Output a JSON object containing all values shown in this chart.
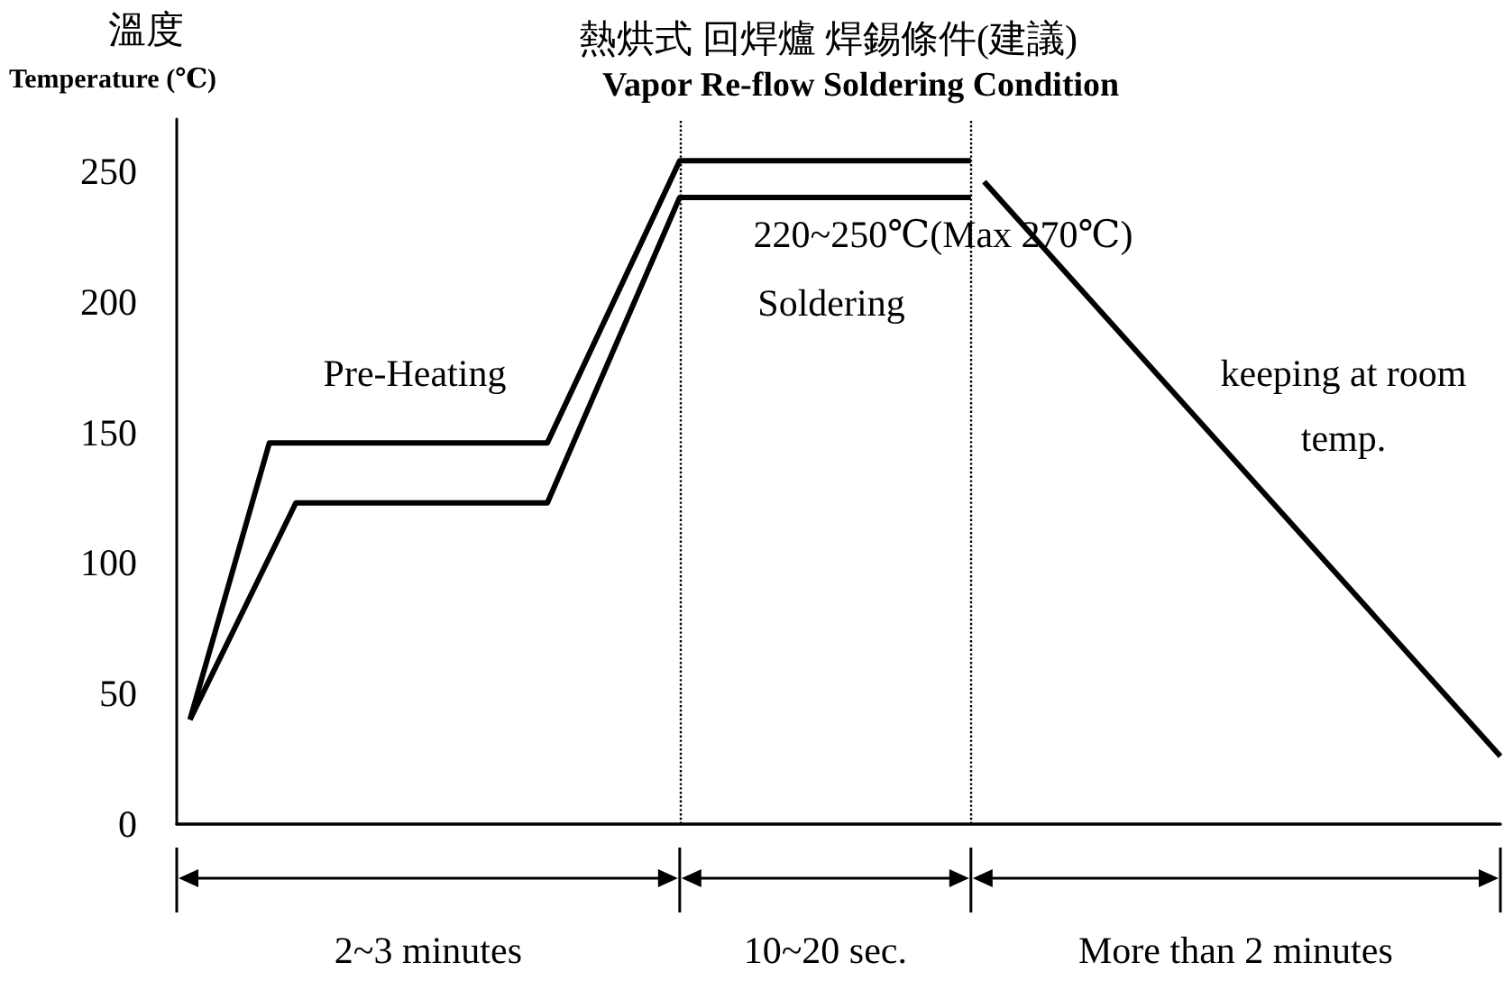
{
  "chart_data": {
    "type": "line",
    "title": "熱烘式 回焊爐 焊錫條件(建議)",
    "subtitle": "Vapor Re-flow Soldering Condition",
    "ylabel": "溫度\nTemperature (℃)",
    "categories": [
      null,
      null,
      null,
      null,
      null,
      null,
      null,
      null,
      null,
      null,
      null,
      null,
      null,
      null,
      null,
      null,
      null,
      null,
      null,
      null,
      null,
      null,
      null,
      null,
      null,
      null,
      null,
      null,
      null,
      null,
      null,
      null,
      null,
      null,
      null,
      null,
      null,
      null,
      null,
      null,
      null,
      null,
      null,
      null,
      null,
      null,
      null,
      null,
      null,
      null,
      null,
      null,
      null,
      null,
      null,
      null,
      null,
      null,
      null,
      null,
      null,
      null,
      null,
      null,
      null,
      null,
      null,
      null,
      null,
      null,
      null,
      null,
      null,
      null,
      null,
      null,
      null,
      null,
      null,
      null,
      null,
      null,
      null,
      null,
      null,
      null,
      null,
      null,
      null,
      null,
      null,
      null,
      null,
      null,
      null,
      null,
      null,
      null,
      null,
      null,
      null
    ],
    "ylim": [
      0,
      270
    ],
    "yticks": [
      0,
      50,
      100,
      150,
      200,
      250
    ],
    "tick_labels": "y",
    "line_style": "solid",
    "series": [
      {
        "color": "#000000",
        "values": [
          null,
          40,
          null,
          null,
          null,
          null,
          null,
          146,
          null,
          null,
          null,
          null,
          null,
          null,
          null,
          null,
          null,
          null,
          null,
          null,
          null,
          null,
          null,
          null,
          null,
          null,
          null,
          null,
          146,
          null,
          null,
          null,
          null,
          null,
          null,
          null,
          null,
          null,
          254,
          null,
          null,
          null,
          null,
          null,
          null,
          null,
          null,
          null,
          null,
          null,
          null,
          null,
          null,
          null,
          null,
          null,
          null,
          null,
          null,
          null,
          254,
          null,
          null,
          null,
          null,
          null,
          null,
          null,
          null,
          null,
          null,
          null,
          null,
          null,
          null,
          null,
          null,
          null,
          null,
          null,
          null,
          null,
          null,
          null,
          null,
          null,
          null,
          null,
          null,
          null,
          null,
          null,
          null,
          null,
          null,
          null,
          null,
          null,
          null,
          null,
          null
        ]
      },
      {
        "color": "#000000",
        "values": [
          null,
          40,
          null,
          null,
          null,
          null,
          null,
          null,
          null,
          123,
          null,
          null,
          null,
          null,
          null,
          null,
          null,
          null,
          null,
          null,
          null,
          null,
          null,
          null,
          null,
          null,
          null,
          null,
          123,
          null,
          null,
          null,
          null,
          null,
          null,
          null,
          null,
          null,
          240,
          null,
          null,
          null,
          null,
          null,
          null,
          null,
          null,
          null,
          null,
          null,
          null,
          null,
          null,
          null,
          null,
          null,
          null,
          null,
          null,
          null,
          240,
          null,
          null,
          null,
          null,
          null,
          null,
          null,
          null,
          null,
          null,
          null,
          null,
          null,
          null,
          null,
          null,
          null,
          null,
          null,
          null,
          null,
          null,
          null,
          null,
          null,
          null,
          null,
          null,
          null,
          null,
          null,
          null,
          null,
          null,
          null,
          null,
          null,
          null,
          null,
          null
        ]
      },
      {
        "color": "#000000",
        "values": [
          null,
          null,
          null,
          null,
          null,
          null,
          null,
          null,
          null,
          null,
          null,
          null,
          null,
          null,
          null,
          null,
          null,
          null,
          null,
          null,
          null,
          null,
          null,
          null,
          null,
          null,
          null,
          null,
          null,
          null,
          null,
          null,
          null,
          null,
          null,
          null,
          null,
          null,
          null,
          null,
          null,
          null,
          null,
          null,
          null,
          null,
          null,
          null,
          null,
          null,
          null,
          null,
          null,
          null,
          null,
          null,
          null,
          null,
          null,
          null,
          null,
          246,
          null,
          null,
          null,
          null,
          null,
          null,
          null,
          null,
          null,
          null,
          null,
          null,
          null,
          null,
          null,
          null,
          null,
          null,
          null,
          null,
          null,
          null,
          null,
          null,
          null,
          null,
          null,
          null,
          null,
          null,
          null,
          null,
          null,
          null,
          null,
          null,
          null,
          null,
          26
        ]
      }
    ],
    "annotations": [
      "Pre-Heating",
      "220~250℃(Max 270℃)",
      "Soldering",
      "keeping at room\ntemp.",
      "2~3 minutes",
      "10~20 sec.",
      "More than 2 minutes"
    ]
  }
}
